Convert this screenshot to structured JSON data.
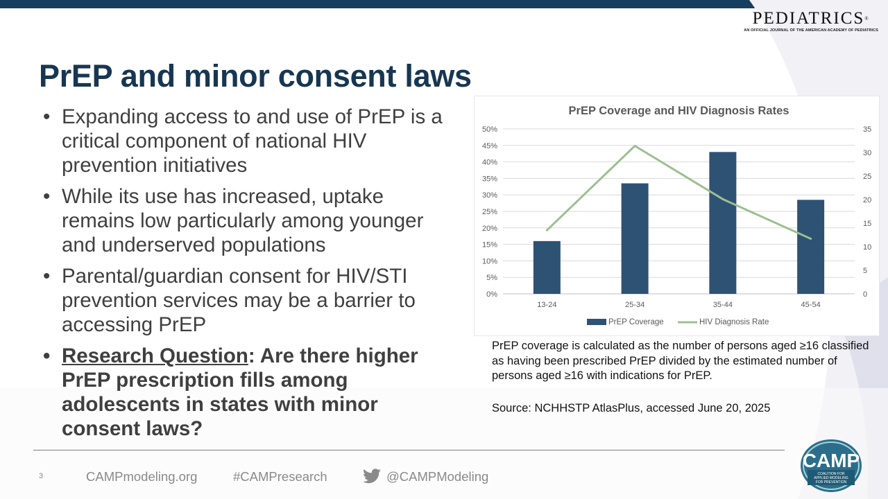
{
  "header": {
    "journal_name": "PEDIATRICS",
    "journal_reg": "®",
    "journal_tagline": "AN OFFICIAL JOURNAL OF THE AMERICAN ACADEMY OF PEDIATRICS"
  },
  "slide": {
    "title": "PrEP and minor consent laws",
    "bullets": [
      "Expanding access to and use of PrEP is a critical component of national HIV prevention initiatives",
      "While its use has increased, uptake remains low particularly among younger and underserved populations",
      "Parental/guardian consent for HIV/STI prevention services may be a barrier to accessing PrEP"
    ],
    "research_question_label": "Research Question",
    "research_question_text": ": Are there higher PrEP prescription fills among adolescents in states with minor consent laws?",
    "note": "PrEP coverage is calculated as the number of persons aged ≥16 classified as having been prescribed PrEP divided by the estimated number of persons aged ≥16 with indications for PrEP.",
    "source": "Source: NCHHSTP AtlasPlus, accessed June 20, 2025"
  },
  "chart_data": {
    "type": "bar",
    "title": "PrEP Coverage and HIV Diagnosis Rates",
    "categories": [
      "13-24",
      "25-34",
      "35-44",
      "45-54"
    ],
    "series": [
      {
        "name": "PrEP Coverage",
        "type": "bar",
        "axis": "left",
        "color": "#2e5274",
        "values": [
          0.16,
          0.335,
          0.43,
          0.285
        ]
      },
      {
        "name": "HIV Diagnosis Rate",
        "type": "line",
        "axis": "right",
        "color": "#9cbf91",
        "values": [
          13.5,
          31.4,
          20.1,
          11.7
        ]
      }
    ],
    "y_left": {
      "min": 0,
      "max": 0.5,
      "step": 0.05,
      "tick_labels": [
        "0%",
        "5%",
        "10%",
        "15%",
        "20%",
        "25%",
        "30%",
        "35%",
        "40%",
        "45%",
        "50%"
      ]
    },
    "y_right": {
      "min": 0,
      "max": 35,
      "step": 5,
      "tick_labels": [
        "0",
        "5",
        "10",
        "15",
        "20",
        "25",
        "30",
        "35"
      ]
    },
    "grid": true,
    "legend_position": "bottom"
  },
  "footer": {
    "page_number": "3",
    "website": "CAMPmodeling.org",
    "hashtag": "#CAMPresearch",
    "handle": "@CAMPModeling",
    "camp_logo_text": "CAMP",
    "camp_logo_sub": [
      "COALITION FOR",
      "APPLIED MODELING",
      "FOR PREVENTION"
    ]
  }
}
